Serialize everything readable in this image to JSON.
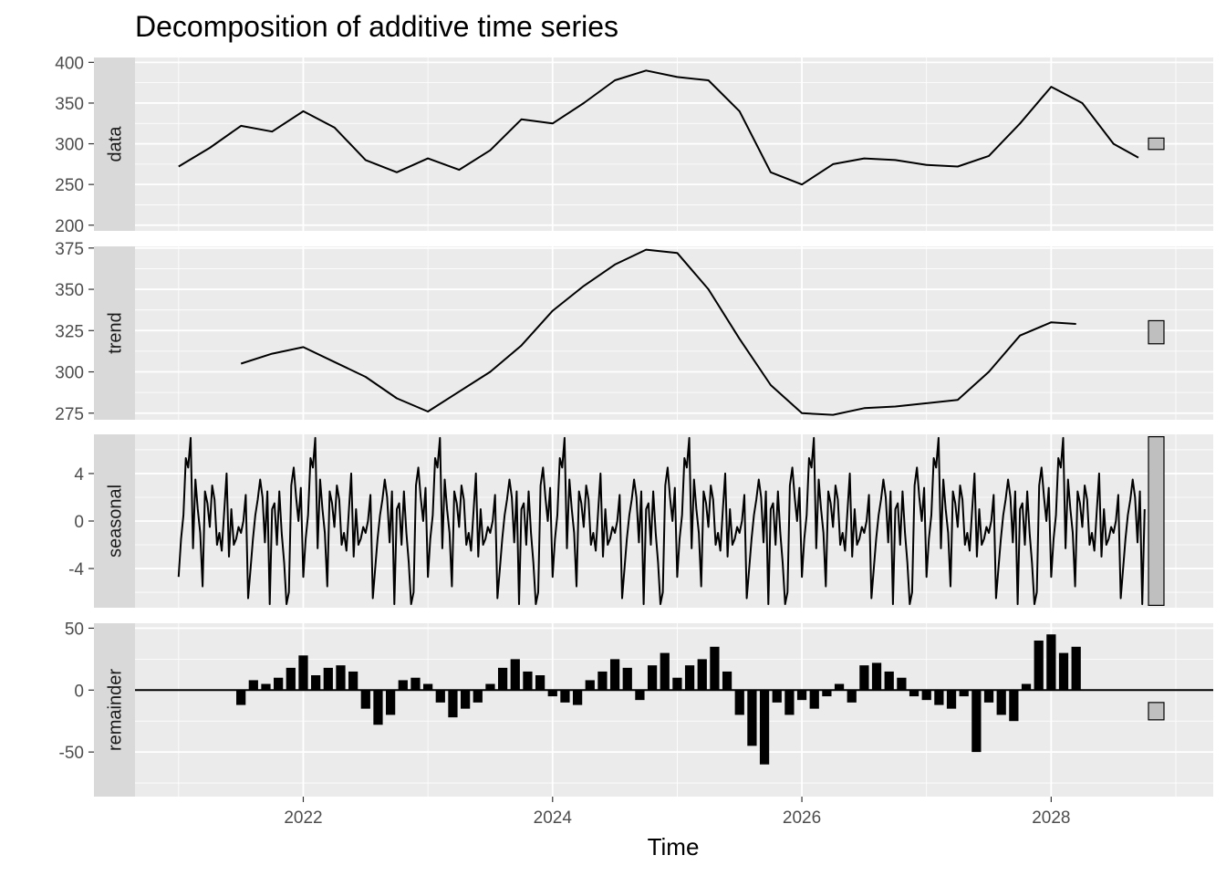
{
  "chart_data": {
    "type": "line",
    "title": "Decomposition of additive time series",
    "xlabel": "Time",
    "xlim": [
      2020.65,
      2029.3
    ],
    "x_ticks": [
      2022,
      2024,
      2026,
      2028
    ],
    "x_tick_labels": [
      "2022",
      "2024",
      "2026",
      "2028"
    ],
    "grid": true,
    "panels": [
      {
        "name": "data",
        "type": "line",
        "ylim": [
          193,
          406
        ],
        "y_ticks": [
          200,
          250,
          300,
          350,
          400
        ],
        "y_tick_labels": [
          "200",
          "250",
          "300",
          "350",
          "400"
        ],
        "range_bar": [
          293,
          307
        ],
        "x": [
          2021.0,
          2021.25,
          2021.5,
          2021.75,
          2022.0,
          2022.25,
          2022.5,
          2022.75,
          2023.0,
          2023.25,
          2023.5,
          2023.75,
          2024.0,
          2024.25,
          2024.5,
          2024.75,
          2025.0,
          2025.25,
          2025.5,
          2025.75,
          2026.0,
          2026.25,
          2026.5,
          2026.75,
          2027.0,
          2027.25,
          2027.5,
          2027.75,
          2028.0,
          2028.25,
          2028.5,
          2028.7
        ],
        "values": [
          272,
          295,
          322,
          315,
          340,
          320,
          280,
          265,
          282,
          268,
          292,
          330,
          325,
          350,
          378,
          390,
          382,
          378,
          340,
          265,
          250,
          275,
          282,
          280,
          274,
          272,
          285,
          325,
          370,
          350,
          300,
          283
        ]
      },
      {
        "name": "trend",
        "type": "line",
        "ylim": [
          271,
          376
        ],
        "y_ticks": [
          275,
          300,
          325,
          350,
          375
        ],
        "y_tick_labels": [
          "275",
          "300",
          "325",
          "350",
          "375"
        ],
        "range_bar": [
          317,
          331
        ],
        "x": [
          2021.5,
          2021.75,
          2022.0,
          2022.25,
          2022.5,
          2022.75,
          2023.0,
          2023.25,
          2023.5,
          2023.75,
          2024.0,
          2024.25,
          2024.5,
          2024.75,
          2025.0,
          2025.25,
          2025.5,
          2025.75,
          2026.0,
          2026.25,
          2026.5,
          2026.75,
          2027.0,
          2027.25,
          2027.5,
          2027.75,
          2028.0,
          2028.2
        ],
        "values": [
          305,
          311,
          315,
          306,
          297,
          284,
          276,
          288,
          300,
          316,
          337,
          352,
          365,
          374,
          372,
          350,
          320,
          292,
          275,
          274,
          278,
          279,
          281,
          283,
          300,
          322,
          330,
          329
        ]
      },
      {
        "name": "seasonal",
        "type": "line",
        "ylim": [
          -7.3,
          7.3
        ],
        "y_ticks": [
          -4,
          0,
          4
        ],
        "y_tick_labels": [
          "-4",
          "0",
          "4"
        ],
        "range_bar": [
          -7.1,
          7.1
        ],
        "period": 1,
        "x_start": 2021.0,
        "x_end": 2028.75,
        "cycle_values": [
          -4.7,
          -1.5,
          0.5,
          5.3,
          4.5,
          7.0,
          -2.3,
          3.5,
          1.0,
          -1.0,
          -5.5,
          2.5,
          1.5,
          -0.5,
          3.0,
          1.8,
          -2.0,
          -1.0,
          -2.5,
          0.8,
          4.0,
          -3.0,
          1.0,
          -2.0,
          -1.5,
          -0.5,
          -1.0,
          0.0,
          2.2,
          -6.5,
          -4.0,
          -1.5,
          0.5,
          1.8,
          3.5,
          2.0,
          -1.8,
          2.5,
          -7.0,
          1.0,
          1.5,
          -2.0,
          2.5,
          -1.0,
          -3.5,
          -7.0,
          -6.0,
          3.0,
          4.5,
          2.0,
          0.0,
          2.8
        ]
      },
      {
        "name": "remainder",
        "type": "bar",
        "ylim": [
          -86,
          54
        ],
        "y_ticks": [
          -50,
          0,
          50
        ],
        "y_tick_labels": [
          "-50",
          "0",
          "50"
        ],
        "range_bar": [
          -24,
          -10
        ],
        "x": [
          2021.5,
          2021.6,
          2021.7,
          2021.8,
          2021.9,
          2022.0,
          2022.1,
          2022.2,
          2022.3,
          2022.4,
          2022.5,
          2022.6,
          2022.7,
          2022.8,
          2022.9,
          2023.0,
          2023.1,
          2023.2,
          2023.3,
          2023.4,
          2023.5,
          2023.6,
          2023.7,
          2023.8,
          2023.9,
          2024.0,
          2024.1,
          2024.2,
          2024.3,
          2024.4,
          2024.5,
          2024.6,
          2024.7,
          2024.8,
          2024.9,
          2025.0,
          2025.1,
          2025.2,
          2025.3,
          2025.4,
          2025.5,
          2025.6,
          2025.7,
          2025.8,
          2025.9,
          2026.0,
          2026.1,
          2026.2,
          2026.3,
          2026.4,
          2026.5,
          2026.6,
          2026.7,
          2026.8,
          2026.9,
          2027.0,
          2027.1,
          2027.2,
          2027.3,
          2027.4,
          2027.5,
          2027.6,
          2027.7,
          2027.8,
          2027.9,
          2028.0,
          2028.1,
          2028.2
        ],
        "values": [
          -12,
          8,
          5,
          10,
          18,
          28,
          12,
          18,
          20,
          15,
          -15,
          -28,
          -20,
          8,
          10,
          5,
          -10,
          -22,
          -15,
          -10,
          5,
          18,
          25,
          15,
          12,
          -5,
          -10,
          -12,
          8,
          15,
          25,
          18,
          -8,
          20,
          30,
          10,
          20,
          25,
          35,
          15,
          -20,
          -45,
          -60,
          -10,
          -20,
          -8,
          -15,
          -5,
          5,
          -10,
          20,
          22,
          15,
          10,
          -5,
          -8,
          -12,
          -15,
          -5,
          -50,
          -10,
          -20,
          -25,
          5,
          40,
          45,
          30,
          35
        ]
      }
    ]
  }
}
